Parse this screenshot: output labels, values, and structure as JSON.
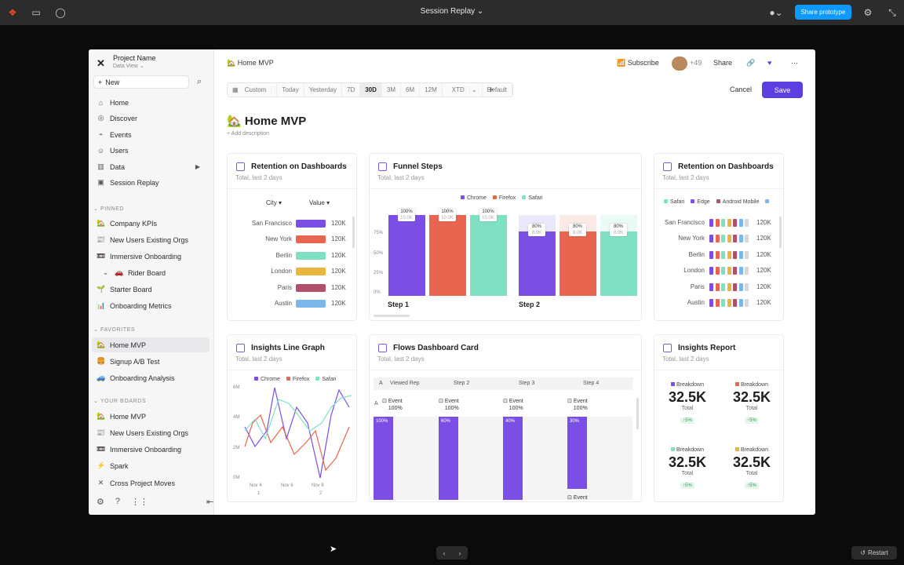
{
  "topbar": {
    "title": "Session Replay",
    "share_label": "Share prototype"
  },
  "sidebar": {
    "project_name": "Project Name",
    "project_sub": "Data View",
    "new_label": "New",
    "nav": [
      {
        "label": "Home",
        "icon": "home-icon"
      },
      {
        "label": "Discover",
        "icon": "compass-icon"
      },
      {
        "label": "Events",
        "icon": "events-icon"
      },
      {
        "label": "Users",
        "icon": "users-icon"
      },
      {
        "label": "Data",
        "icon": "data-icon"
      },
      {
        "label": "Session Replay",
        "icon": "replay-icon"
      }
    ],
    "pinned_label": "PINNED",
    "pinned": [
      "Company KPIs",
      "New Users Existing Orgs",
      "Immersive Onboarding",
      "Rider Board",
      "Starter Board",
      "Onboarding Metrics"
    ],
    "favorites_label": "FAVORITES",
    "favorites": [
      "Home MVP",
      "Signup A/B Test",
      "Onboarding Analysis"
    ],
    "boards_label": "YOUR BOARDS",
    "boards": [
      "Home MVP",
      "New Users Existing Orgs",
      "Immersive Onboarding",
      "Spark",
      "Cross Project Moves"
    ]
  },
  "header": {
    "crumb": "Home MVP",
    "subscribe": "Subscribe",
    "avatar_count": "+49",
    "share": "Share",
    "cancel": "Cancel",
    "save": "Save",
    "date_options": [
      "Custom",
      "Today",
      "Yesterday",
      "7D",
      "30D",
      "3M",
      "6M",
      "12M",
      "XTD",
      "Default"
    ],
    "title": "Home MVP",
    "add_desc": "+ Add description"
  },
  "colors": {
    "purple": "#7b4fe6",
    "coral": "#e8664f",
    "mint": "#7fe0c4",
    "yellow": "#e8b53e",
    "berry": "#b0506a",
    "sky": "#7db6e8",
    "accent": "#5b3fe0"
  },
  "card1": {
    "title": "Retention on Dashboards",
    "sub": "Total, last 2 days",
    "col_city": "City",
    "col_value": "Value",
    "rows": [
      {
        "city": "San Francisco",
        "value": "120K"
      },
      {
        "city": "New York",
        "value": "120K"
      },
      {
        "city": "Berlin",
        "value": "120K"
      },
      {
        "city": "London",
        "value": "120K"
      },
      {
        "city": "Paris",
        "value": "120K"
      },
      {
        "city": "Austin",
        "value": "120K"
      }
    ]
  },
  "card2": {
    "title": "Funnel Steps",
    "sub": "Total, last 2 days",
    "legend": [
      "Chrome",
      "Firefox",
      "Safari"
    ],
    "yticks": [
      "75%",
      "50%",
      "25%",
      "0%"
    ],
    "steps": [
      "Step 1",
      "Step 2"
    ],
    "pcts": [
      "100%",
      "100%",
      "100%",
      "80%",
      "80%",
      "80%"
    ],
    "subs": [
      "10.0K",
      "10.0K",
      "10.0K",
      "8.0K",
      "8.0K",
      "8.0K"
    ]
  },
  "card3": {
    "title": "Retention on Dashboards",
    "sub": "Total, last 2 days",
    "legend": [
      "Safari",
      "Edge",
      "Android Mobile"
    ],
    "rows": [
      {
        "city": "San Francisco",
        "value": "120K"
      },
      {
        "city": "New York",
        "value": "120K"
      },
      {
        "city": "Berlin",
        "value": "120K"
      },
      {
        "city": "London",
        "value": "120K"
      },
      {
        "city": "Paris",
        "value": "120K"
      },
      {
        "city": "Austin",
        "value": "120K"
      }
    ]
  },
  "card4": {
    "title": "Insights Line Graph",
    "sub": "Total, last 2 days",
    "legend": [
      "Chrome",
      "Firefox",
      "Safari"
    ],
    "yticks": [
      "6M",
      "4M",
      "2M",
      "0M"
    ],
    "xticks": [
      "Nov 4",
      "Nov 6",
      "Nov 8"
    ],
    "xsub": [
      "1",
      "2"
    ]
  },
  "card5": {
    "title": "Flows Dashboard Card",
    "sub": "Total, last 2 days",
    "steps": [
      "Viewed Rep",
      "Step 2",
      "Step 3",
      "Step 4"
    ],
    "row_a": "A",
    "event": "Event",
    "event_pct": "100%",
    "bars": [
      "100%",
      "60%",
      "40%",
      "30%"
    ]
  },
  "card6": {
    "title": "Insights Report",
    "sub": "Total, last 2 days",
    "stats": [
      {
        "label": "Breakdown",
        "value": "32.5K",
        "total": "Total",
        "delta": "↑5%"
      },
      {
        "label": "Breakdown",
        "value": "32.5K",
        "total": "Total",
        "delta": "↑5%"
      },
      {
        "label": "Breakdown",
        "value": "32.5K",
        "total": "Total",
        "delta": "↑5%"
      },
      {
        "label": "Breakdown",
        "value": "32.5K",
        "total": "Total",
        "delta": "↑5%"
      }
    ]
  },
  "footer": {
    "restart": "Restart"
  }
}
